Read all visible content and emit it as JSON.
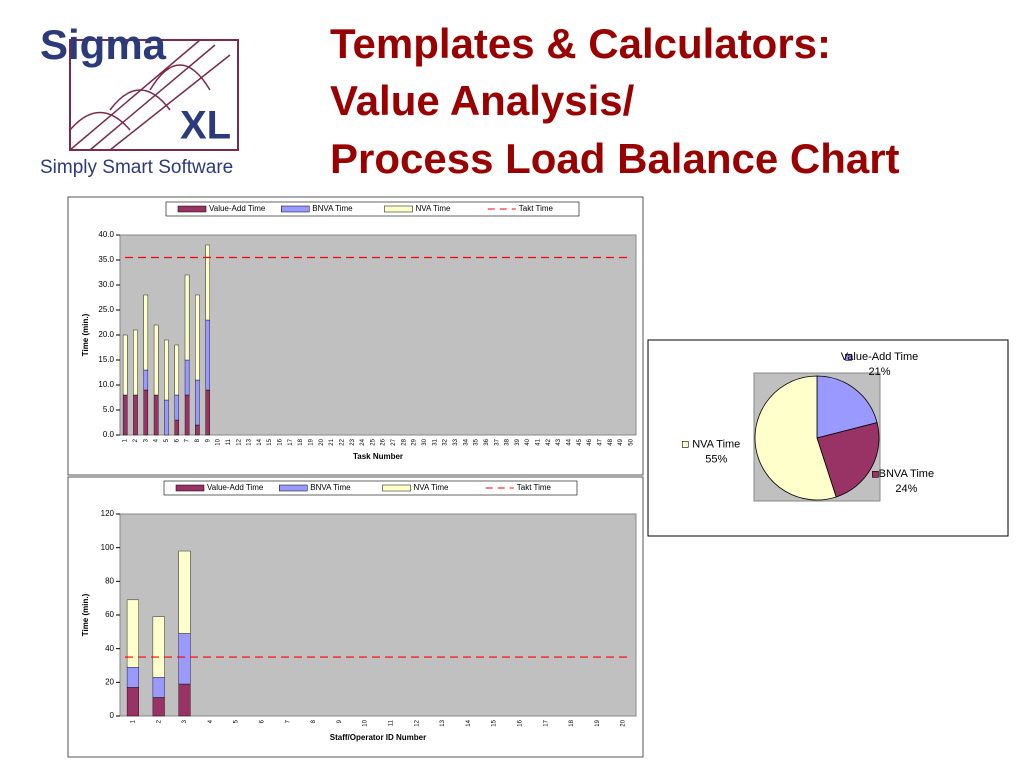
{
  "header": {
    "logo": "Sigma",
    "logo_suffix": "XL",
    "tagline": "Simply Smart Software",
    "title": [
      "Templates & Calculators:",
      "Value Analysis/",
      "Process Load Balance Chart"
    ]
  },
  "chart_data": [
    {
      "type": "bar",
      "stacked": true,
      "ylabel": "Time (min.)",
      "xlabel": "Task Number",
      "categories": [
        "1",
        "2",
        "3",
        "4",
        "5",
        "6",
        "7",
        "8",
        "9",
        "10",
        "11",
        "12",
        "13",
        "14",
        "15",
        "16",
        "17",
        "18",
        "19",
        "20",
        "21",
        "22",
        "23",
        "24",
        "25",
        "26",
        "27",
        "28",
        "29",
        "30",
        "31",
        "32",
        "33",
        "34",
        "35",
        "36",
        "37",
        "38",
        "39",
        "40",
        "41",
        "42",
        "43",
        "44",
        "45",
        "46",
        "47",
        "48",
        "49",
        "50"
      ],
      "series": [
        {
          "name": "Value-Add Time",
          "color": "#993366",
          "values": [
            8,
            8,
            9,
            8,
            0,
            3,
            8,
            2,
            9,
            null,
            null,
            null,
            null,
            null,
            null,
            null,
            null,
            null,
            null,
            null,
            null,
            null,
            null,
            null,
            null,
            null,
            null,
            null,
            null,
            null,
            null,
            null,
            null,
            null,
            null,
            null,
            null,
            null,
            null,
            null,
            null,
            null,
            null,
            null,
            null,
            null,
            null,
            null,
            null,
            null
          ]
        },
        {
          "name": "BNVA Time",
          "color": "#9999ff",
          "values": [
            0,
            0,
            4,
            0,
            7,
            5,
            7,
            9,
            14,
            null,
            null,
            null,
            null,
            null,
            null,
            null,
            null,
            null,
            null,
            null,
            null,
            null,
            null,
            null,
            null,
            null,
            null,
            null,
            null,
            null,
            null,
            null,
            null,
            null,
            null,
            null,
            null,
            null,
            null,
            null,
            null,
            null,
            null,
            null,
            null,
            null,
            null,
            null,
            null,
            null
          ]
        },
        {
          "name": "NVA Time",
          "color": "#ffffcc",
          "values": [
            12,
            13,
            15,
            14,
            12,
            10,
            17,
            17,
            15,
            null,
            null,
            null,
            null,
            null,
            null,
            null,
            null,
            null,
            null,
            null,
            null,
            null,
            null,
            null,
            null,
            null,
            null,
            null,
            null,
            null,
            null,
            null,
            null,
            null,
            null,
            null,
            null,
            null,
            null,
            null,
            null,
            null,
            null,
            null,
            null,
            null,
            null,
            null,
            null,
            null
          ]
        }
      ],
      "takt": {
        "name": "Takt Time",
        "value": 35.5,
        "color": "#ff0000"
      },
      "ylim": [
        0,
        40
      ],
      "yticks": [
        {
          "value": 0,
          "label": "0.0"
        },
        {
          "value": 5,
          "label": "5.0"
        },
        {
          "value": 10,
          "label": "10.0"
        },
        {
          "value": 15,
          "label": "15.0"
        },
        {
          "value": 20,
          "label": "20.0"
        },
        {
          "value": 25,
          "label": "25.0"
        },
        {
          "value": 30,
          "label": "30.0"
        },
        {
          "value": 35,
          "label": "35.0"
        },
        {
          "value": 40,
          "label": "40.0"
        }
      ],
      "legend": "top"
    },
    {
      "type": "bar",
      "stacked": true,
      "ylabel": "Time (min.)",
      "xlabel": "Staff/Operator ID Number",
      "categories": [
        "1",
        "2",
        "3",
        "4",
        "5",
        "6",
        "7",
        "8",
        "9",
        "10",
        "11",
        "12",
        "13",
        "14",
        "15",
        "16",
        "17",
        "18",
        "19",
        "20"
      ],
      "series": [
        {
          "name": "Value-Add Time",
          "color": "#993366",
          "values": [
            17,
            11,
            19,
            null,
            null,
            null,
            null,
            null,
            null,
            null,
            null,
            null,
            null,
            null,
            null,
            null,
            null,
            null,
            null,
            null
          ]
        },
        {
          "name": "BNVA Time",
          "color": "#9999ff",
          "values": [
            12,
            12,
            30,
            null,
            null,
            null,
            null,
            null,
            null,
            null,
            null,
            null,
            null,
            null,
            null,
            null,
            null,
            null,
            null,
            null
          ]
        },
        {
          "name": "NVA Time",
          "color": "#ffffcc",
          "values": [
            40,
            36,
            49,
            null,
            null,
            null,
            null,
            null,
            null,
            null,
            null,
            null,
            null,
            null,
            null,
            null,
            null,
            null,
            null,
            null
          ]
        }
      ],
      "takt": {
        "name": "Takt Time",
        "value": 35,
        "color": "#ff0000"
      },
      "ylim": [
        0,
        120
      ],
      "yticks": [
        0,
        20,
        40,
        60,
        80,
        100,
        120
      ],
      "legend": "top"
    },
    {
      "type": "pie",
      "categories": [
        "Value-Add Time",
        "BNVA Time",
        "NVA Time"
      ],
      "values": [
        21,
        24,
        55
      ],
      "value_labels": [
        "21%",
        "24%",
        "55%"
      ],
      "colors": [
        "#9999ff",
        "#993366",
        "#ffffcc"
      ]
    }
  ]
}
